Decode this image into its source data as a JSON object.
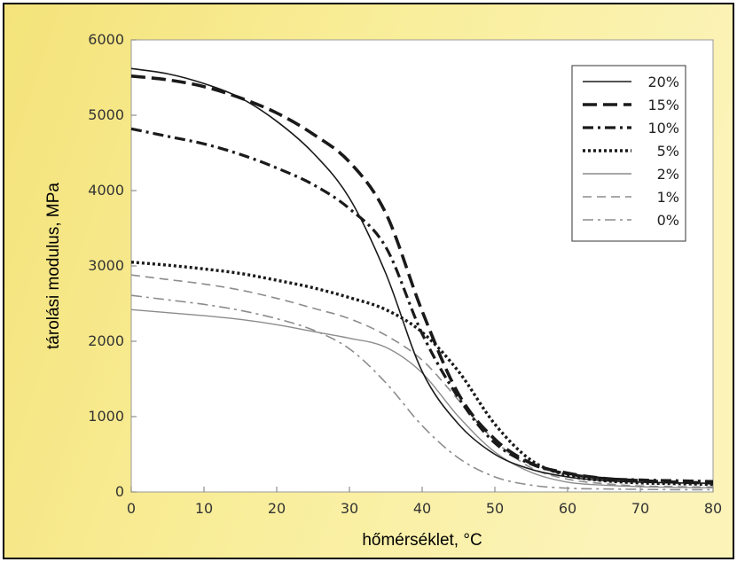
{
  "chart_data": {
    "type": "line",
    "title": "",
    "xlabel": "hőmérséklet, °C",
    "ylabel": "tárolási modulus, MPa",
    "xlim": [
      0,
      80
    ],
    "ylim": [
      0,
      6000
    ],
    "x_ticks": [
      "0",
      "10",
      "20",
      "30",
      "40",
      "50",
      "60",
      "70",
      "80"
    ],
    "y_ticks": [
      "0",
      "1000",
      "2000",
      "3000",
      "4000",
      "5000",
      "6000"
    ],
    "grid": false,
    "legend_position": "top-right",
    "x": [
      0,
      5,
      10,
      15,
      20,
      25,
      30,
      35,
      40,
      45,
      50,
      55,
      60,
      65,
      70,
      75,
      80
    ],
    "series": [
      {
        "name": "20%",
        "style": "solid-dark",
        "values": [
          5620,
          5550,
          5420,
          5230,
          4920,
          4500,
          3900,
          2900,
          1600,
          900,
          500,
          300,
          200,
          150,
          130,
          120,
          115
        ]
      },
      {
        "name": "15%",
        "style": "long-dash-thick",
        "values": [
          5520,
          5470,
          5380,
          5230,
          5030,
          4750,
          4380,
          3700,
          2400,
          1300,
          700,
          380,
          250,
          180,
          150,
          130,
          120
        ]
      },
      {
        "name": "10%",
        "style": "dash-dot-thick",
        "values": [
          4820,
          4720,
          4620,
          4480,
          4300,
          4080,
          3760,
          3250,
          2100,
          1250,
          650,
          370,
          240,
          180,
          160,
          150,
          140
        ]
      },
      {
        "name": "5%",
        "style": "dotted-thick",
        "values": [
          3050,
          3010,
          2960,
          2900,
          2810,
          2710,
          2580,
          2420,
          2120,
          1600,
          900,
          420,
          220,
          150,
          120,
          110,
          100
        ]
      },
      {
        "name": "2%",
        "style": "solid-thin-grey",
        "values": [
          2420,
          2380,
          2340,
          2290,
          2220,
          2130,
          2040,
          1920,
          1580,
          1000,
          530,
          260,
          130,
          90,
          70,
          60,
          55
        ]
      },
      {
        "name": "1%",
        "style": "dash-grey",
        "values": [
          2880,
          2820,
          2760,
          2680,
          2570,
          2440,
          2300,
          2080,
          1750,
          1220,
          680,
          320,
          170,
          110,
          80,
          70,
          65
        ]
      },
      {
        "name": "0%",
        "style": "dash-dot-grey",
        "values": [
          2610,
          2550,
          2490,
          2410,
          2300,
          2150,
          1900,
          1450,
          880,
          450,
          200,
          90,
          50,
          40,
          35,
          30,
          30
        ]
      }
    ]
  },
  "colors": {
    "background_yellow": "#f7e98a",
    "plot_background": "#ffffff",
    "frame": "#000000",
    "dark_series": "#1a1a1a",
    "grey_series": "#8c8c8c"
  }
}
